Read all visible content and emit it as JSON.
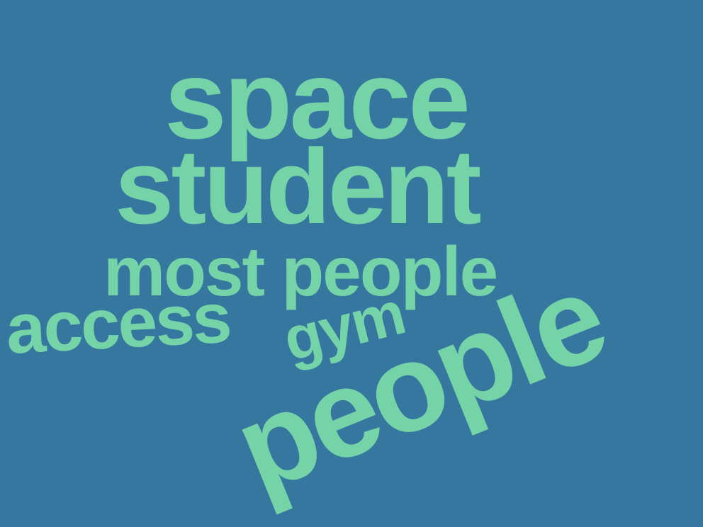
{
  "colors": {
    "background": "#3677a0",
    "word": "#74d4a8"
  },
  "words": {
    "space": "space",
    "student": "student",
    "most_people": "most people",
    "access": "access",
    "gym": "gym",
    "people": "people"
  }
}
